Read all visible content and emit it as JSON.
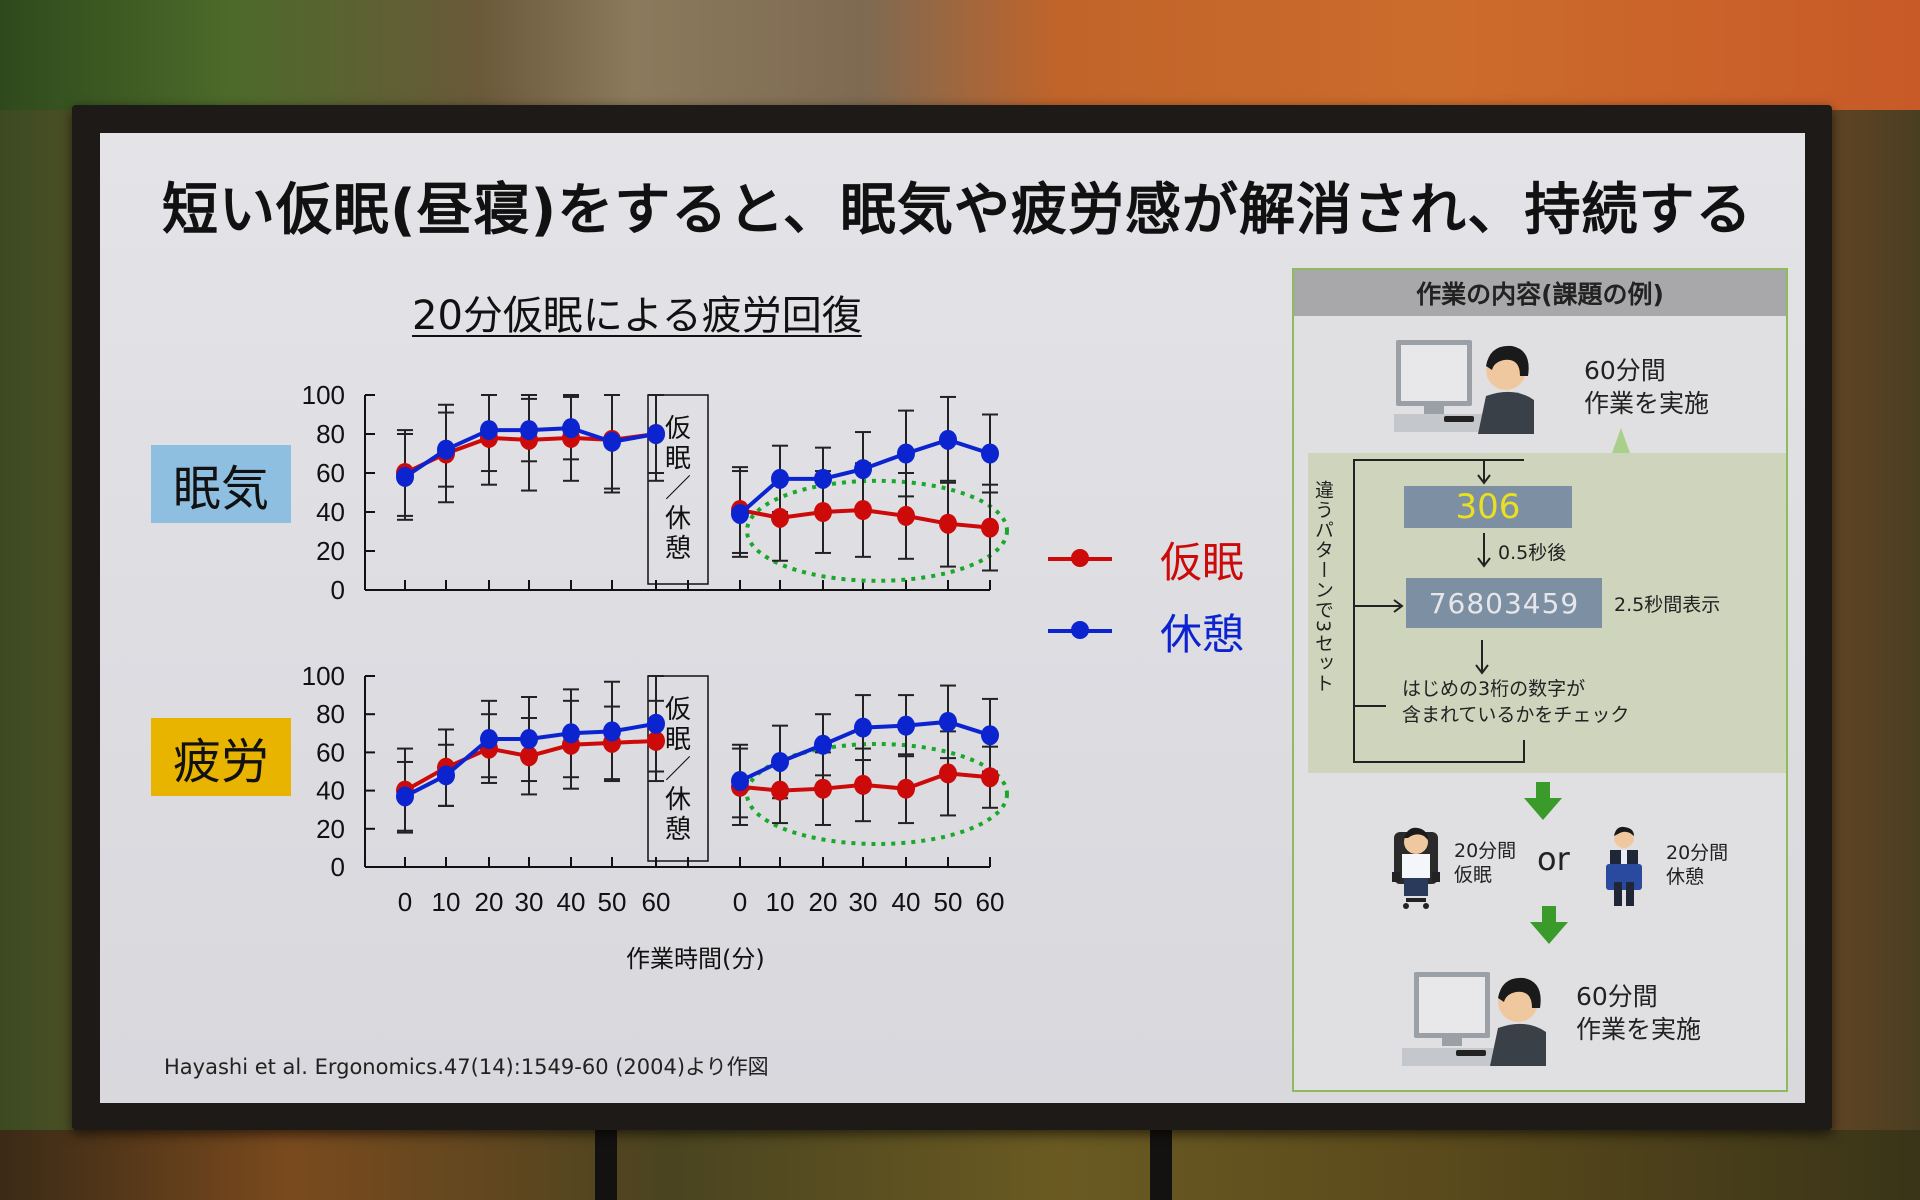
{
  "slide": {
    "title": "短い仮眠(昼寝)をすると、眠気や疲労感が解消され、持続する",
    "subtitle": "20分仮眠による疲労回復",
    "row_labels": {
      "sleepiness": "眠気",
      "fatigue": "疲労"
    },
    "row_label_colors": {
      "sleepiness": "#8fbfe0",
      "fatigue": "#e8b400"
    },
    "intervention_box_text": "仮眠／休憩",
    "x_axis_label": "作業時間(分)",
    "citation": "Hayashi et al. Ergonomics.47(14):1549-60 (2004)より作図",
    "legend": [
      {
        "label": "仮眠",
        "color": "#cc0a0a"
      },
      {
        "label": "休憩",
        "color": "#0c24d0"
      }
    ]
  },
  "side_panel": {
    "header": "作業の内容(課題の例)",
    "step1": {
      "line1": "60分間",
      "line2": "作業を実施"
    },
    "loop_label": "違うパターンで3セット",
    "target_number": "306",
    "delay_label": "0.5秒後",
    "display_number": "76803459",
    "display_duration": "2.5秒間表示",
    "check_text": {
      "line1": "はじめの3桁の数字が",
      "line2": "含まれているかをチェック"
    },
    "option_nap": {
      "line1": "20分間",
      "line2": "仮眠"
    },
    "or_label": "or",
    "option_rest": {
      "line1": "20分間",
      "line2": "休憩"
    },
    "step3": {
      "line1": "60分間",
      "line2": "作業を実施"
    },
    "colors": {
      "border": "#8dbb5e",
      "arrow": "#3a9a2a",
      "number_box": "#7d8fa3",
      "target_number_text": "#e8e020"
    }
  },
  "chart_data": [
    {
      "type": "line",
      "title": "眠気",
      "xlabel": "作業時間(分)",
      "ylabel": "",
      "ylim": [
        0,
        100
      ],
      "yticks": [
        0,
        20,
        40,
        60,
        80,
        100
      ],
      "segments": [
        "pre (before 仮眠/休憩)",
        "post (after 仮眠/休憩)"
      ],
      "x": [
        0,
        10,
        20,
        30,
        40,
        50,
        60
      ],
      "error_bars": true,
      "highlight": "green dotted ellipse around post-nap 仮眠 series",
      "series": [
        {
          "name": "仮眠",
          "color": "#cc0a0a",
          "pre": [
            60,
            70,
            78,
            77,
            78,
            77,
            80
          ],
          "post": [
            41,
            37,
            40,
            41,
            38,
            34,
            32
          ],
          "pre_err": [
            22,
            25,
            24,
            26,
            22,
            25,
            20
          ],
          "post_err": [
            22,
            22,
            21,
            24,
            22,
            22,
            22
          ]
        },
        {
          "name": "休憩",
          "color": "#0c24d0",
          "pre": [
            58,
            72,
            82,
            82,
            83,
            76,
            80
          ],
          "post": [
            39,
            57,
            57,
            62,
            70,
            77,
            70
          ],
          "pre_err": [
            22,
            19,
            21,
            16,
            16,
            26,
            24
          ],
          "post_err": [
            22,
            17,
            16,
            19,
            22,
            22,
            20
          ]
        }
      ]
    },
    {
      "type": "line",
      "title": "疲労",
      "xlabel": "作業時間(分)",
      "ylabel": "",
      "ylim": [
        0,
        100
      ],
      "yticks": [
        0,
        20,
        40,
        60,
        80,
        100
      ],
      "segments": [
        "pre (before 仮眠/休憩)",
        "post (after 仮眠/休憩)"
      ],
      "x": [
        0,
        10,
        20,
        30,
        40,
        50,
        60
      ],
      "error_bars": true,
      "highlight": "green dotted ellipse around post-nap 仮眠 series",
      "series": [
        {
          "name": "仮眠",
          "color": "#cc0a0a",
          "pre": [
            40,
            52,
            62,
            58,
            64,
            65,
            66
          ],
          "post": [
            42,
            40,
            41,
            43,
            41,
            49,
            47
          ],
          "pre_err": [
            22,
            20,
            18,
            20,
            23,
            19,
            21
          ],
          "post_err": [
            20,
            17,
            19,
            19,
            18,
            22,
            16
          ]
        },
        {
          "name": "休憩",
          "color": "#0c24d0",
          "pre": [
            37,
            48,
            67,
            67,
            70,
            71,
            75
          ],
          "post": [
            45,
            55,
            64,
            73,
            74,
            76,
            69
          ],
          "pre_err": [
            18,
            16,
            20,
            22,
            23,
            26,
            25
          ],
          "post_err": [
            19,
            19,
            16,
            17,
            16,
            19,
            19
          ]
        }
      ]
    }
  ]
}
